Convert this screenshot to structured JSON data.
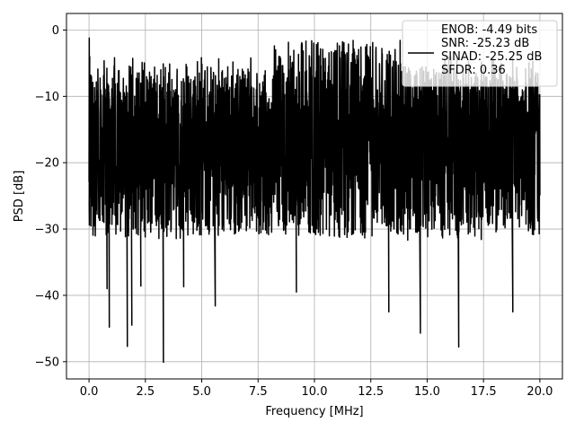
{
  "chart_data": {
    "type": "line",
    "xlabel": "Frequency [MHz]",
    "ylabel": "PSD [dB]",
    "xlim": [
      -1.0,
      21.0
    ],
    "ylim": [
      -52.6,
      2.5
    ],
    "x_ticks": [
      0.0,
      2.5,
      5.0,
      7.5,
      10.0,
      12.5,
      15.0,
      17.5,
      20.0
    ],
    "x_tick_labels": [
      "0.0",
      "2.5",
      "5.0",
      "7.5",
      "10.0",
      "12.5",
      "15.0",
      "17.5",
      "20.0"
    ],
    "y_ticks": [
      0,
      -10,
      -20,
      -30,
      -40,
      -50
    ],
    "y_tick_labels": [
      "0",
      "−10",
      "−20",
      "−30",
      "−40",
      "−50"
    ],
    "grid": true,
    "legend_position": "top-right",
    "legend_entries": [
      "ENOB: -4.49 bits",
      "SNR: -25.23 dB",
      "SINAD: -25.25 dB",
      "SFDR: 0.36"
    ],
    "series_color": "#000000",
    "series": [
      {
        "x_start": 0.0,
        "x_end": 20.0,
        "noise_floor_mean_db": -18,
        "upper_envelope_db": -8,
        "lower_envelope_db": -30,
        "peak_max_db": -1.2,
        "notable_dips": [
          {
            "x": 0.8,
            "y": -39
          },
          {
            "x": 0.9,
            "y": -44.8
          },
          {
            "x": 1.7,
            "y": -47.7
          },
          {
            "x": 1.9,
            "y": -44.5
          },
          {
            "x": 2.3,
            "y": -38.6
          },
          {
            "x": 3.3,
            "y": -50.1
          },
          {
            "x": 4.2,
            "y": -38.7
          },
          {
            "x": 5.6,
            "y": -41.6
          },
          {
            "x": 9.2,
            "y": -39.5
          },
          {
            "x": 13.3,
            "y": -42.5
          },
          {
            "x": 14.7,
            "y": -45.7
          },
          {
            "x": 16.4,
            "y": -47.8
          },
          {
            "x": 18.8,
            "y": -42.5
          }
        ]
      }
    ]
  }
}
